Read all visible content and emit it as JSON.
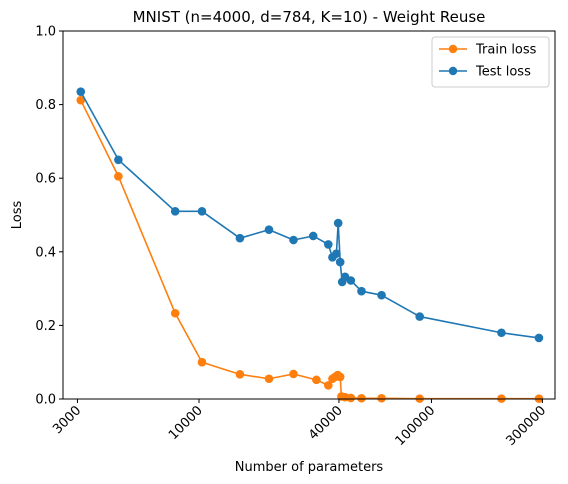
{
  "chart_data": {
    "type": "line",
    "title": "MNIST (n=4000, d=784, K=10) - Weight Reuse",
    "xlabel": "Number of parameters",
    "ylabel": "Loss",
    "x_scale": "log",
    "xlim": [
      2600,
      340000
    ],
    "ylim": [
      0,
      1.0
    ],
    "x_ticks": [
      3000,
      10000,
      40000,
      100000,
      300000
    ],
    "x_tick_labels": [
      "3000",
      "10000",
      "40000",
      "100000",
      "300000"
    ],
    "y_ticks": [
      0,
      0.2,
      0.4,
      0.6,
      0.8,
      1.0
    ],
    "y_tick_labels": [
      "0.0",
      "0.2",
      "0.4",
      "0.6",
      "0.8",
      "1.0"
    ],
    "legend_position": "top-right",
    "grid": false,
    "series": [
      {
        "name": "Train loss",
        "color": "#ff7f0e",
        "points": [
          [
            3100,
            0.812
          ],
          [
            4500,
            0.605
          ],
          [
            7900,
            0.233
          ],
          [
            10300,
            0.1
          ],
          [
            15000,
            0.067
          ],
          [
            20000,
            0.055
          ],
          [
            25500,
            0.068
          ],
          [
            32000,
            0.052
          ],
          [
            36000,
            0.037
          ],
          [
            37500,
            0.055
          ],
          [
            38500,
            0.06
          ],
          [
            39500,
            0.065
          ],
          [
            40500,
            0.06
          ],
          [
            41000,
            0.007
          ],
          [
            42500,
            0.005
          ],
          [
            45000,
            0.003
          ],
          [
            50000,
            0.002
          ],
          [
            61000,
            0.002
          ],
          [
            89000,
            0.001
          ],
          [
            200000,
            0.001
          ],
          [
            290000,
            0.001
          ]
        ]
      },
      {
        "name": "Test loss",
        "color": "#1f77b4",
        "points": [
          [
            3100,
            0.835
          ],
          [
            4500,
            0.65
          ],
          [
            7900,
            0.51
          ],
          [
            10300,
            0.51
          ],
          [
            15000,
            0.437
          ],
          [
            20000,
            0.46
          ],
          [
            25500,
            0.432
          ],
          [
            31000,
            0.443
          ],
          [
            36000,
            0.42
          ],
          [
            37500,
            0.385
          ],
          [
            39000,
            0.395
          ],
          [
            39700,
            0.478
          ],
          [
            40500,
            0.372
          ],
          [
            41300,
            0.318
          ],
          [
            42500,
            0.332
          ],
          [
            45000,
            0.322
          ],
          [
            50000,
            0.293
          ],
          [
            61000,
            0.282
          ],
          [
            89000,
            0.224
          ],
          [
            200000,
            0.18
          ],
          [
            290000,
            0.166
          ]
        ]
      }
    ]
  }
}
